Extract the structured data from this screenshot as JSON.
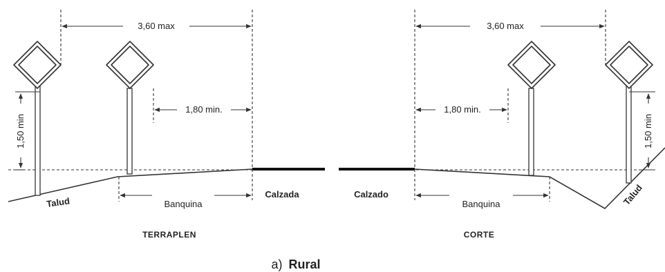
{
  "figure": {
    "left": {
      "section_label": "TERRAPLEN",
      "dim_top": "3,60 max",
      "dim_mid": "1,80 min.",
      "dim_vertical": "1,50 min",
      "slope_label": "Talud",
      "shoulder_label": "Banquina",
      "road_label": "Calzada"
    },
    "right": {
      "section_label": "CORTE",
      "dim_top": "3,60 max",
      "dim_mid": "1,80 min.",
      "dim_vertical": "1,50 min",
      "slope_label": "Talud",
      "shoulder_label": "Banquina",
      "road_label": "Calzado"
    },
    "caption_prefix": "a)",
    "caption_bold": "Rural"
  }
}
